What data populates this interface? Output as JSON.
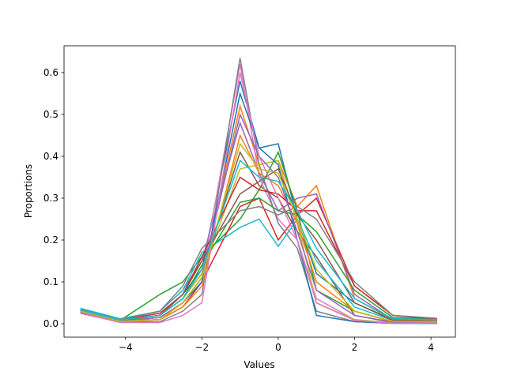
{
  "chart_data": {
    "type": "line",
    "xlabel": "Values",
    "ylabel": "Proportions",
    "x": [
      -5.18,
      -4.14,
      -3.1,
      -2.5,
      -2.0,
      -1.0,
      -0.5,
      0.0,
      0.5,
      1.0,
      2.0,
      3.0,
      4.16
    ],
    "xlim": [
      -5.61,
      4.64
    ],
    "xticks": [
      {
        "value": -4,
        "label": "−4"
      },
      {
        "value": -2,
        "label": "−2"
      },
      0,
      2,
      4
    ],
    "ylim": [
      -0.032,
      0.664
    ],
    "yticks": [
      {
        "value": 0,
        "label": "0.0"
      },
      0.1,
      0.2,
      0.3,
      0.4,
      0.5,
      0.6
    ],
    "series": [
      {
        "color": "#1f77b4",
        "values": [
          0.033,
          0.008,
          0.02,
          0.07,
          0.13,
          0.58,
          0.42,
          0.43,
          0.25,
          0.12,
          0.05,
          0.01,
          0.008
        ]
      },
      {
        "color": "#ff7f0e",
        "values": [
          0.028,
          0.005,
          0.015,
          0.05,
          0.11,
          0.52,
          0.38,
          0.39,
          0.28,
          0.33,
          0.06,
          0.01,
          0.005
        ]
      },
      {
        "color": "#2ca02c",
        "values": [
          0.03,
          0.008,
          0.07,
          0.1,
          0.16,
          0.25,
          0.32,
          0.41,
          0.27,
          0.08,
          0.03,
          0.005,
          0.005
        ]
      },
      {
        "color": "#d62728",
        "values": [
          0.025,
          0.004,
          0.01,
          0.04,
          0.1,
          0.28,
          0.3,
          0.2,
          0.26,
          0.3,
          0.09,
          0.02,
          0.01
        ]
      },
      {
        "color": "#9467bd",
        "values": [
          0.035,
          0.01,
          0.03,
          0.08,
          0.15,
          0.48,
          0.36,
          0.27,
          0.3,
          0.31,
          0.07,
          0.01,
          0.012
        ]
      },
      {
        "color": "#8c564b",
        "values": [
          0.03,
          0.005,
          0.02,
          0.06,
          0.12,
          0.41,
          0.33,
          0.3,
          0.22,
          0.16,
          0.02,
          0.003,
          0.004
        ]
      },
      {
        "color": "#e377c2",
        "values": [
          0.03,
          0.006,
          0.015,
          0.05,
          0.11,
          0.62,
          0.35,
          0.25,
          0.2,
          0.06,
          0.01,
          0.002,
          0.002
        ]
      },
      {
        "color": "#7f7f7f",
        "values": [
          0.028,
          0.004,
          0.005,
          0.03,
          0.07,
          0.635,
          0.38,
          0.24,
          0.18,
          0.03,
          0.005,
          0.001,
          0.001
        ]
      },
      {
        "color": "#bcbd22",
        "values": [
          0.03,
          0.007,
          0.02,
          0.06,
          0.12,
          0.37,
          0.38,
          0.39,
          0.24,
          0.05,
          0.01,
          0.002,
          0.003
        ]
      },
      {
        "color": "#17becf",
        "values": [
          0.037,
          0.012,
          0.03,
          0.08,
          0.17,
          0.23,
          0.25,
          0.185,
          0.25,
          0.15,
          0.04,
          0.008,
          0.01
        ]
      },
      {
        "color": "#1f77b4",
        "values": [
          0.03,
          0.006,
          0.01,
          0.05,
          0.1,
          0.55,
          0.42,
          0.38,
          0.2,
          0.02,
          0.005,
          0.001,
          0.001
        ]
      },
      {
        "color": "#ff7f0e",
        "values": [
          0.027,
          0.004,
          0.01,
          0.04,
          0.09,
          0.45,
          0.36,
          0.33,
          0.24,
          0.1,
          0.03,
          0.005,
          0.006
        ]
      },
      {
        "color": "#2ca02c",
        "values": [
          0.03,
          0.007,
          0.02,
          0.06,
          0.14,
          0.29,
          0.3,
          0.27,
          0.26,
          0.22,
          0.08,
          0.015,
          0.01
        ]
      },
      {
        "color": "#d62728",
        "values": [
          0.032,
          0.009,
          0.025,
          0.07,
          0.16,
          0.35,
          0.32,
          0.31,
          0.27,
          0.27,
          0.09,
          0.02,
          0.012
        ]
      },
      {
        "color": "#9467bd",
        "values": [
          0.029,
          0.005,
          0.015,
          0.05,
          0.11,
          0.5,
          0.4,
          0.35,
          0.22,
          0.08,
          0.02,
          0.004,
          0.005
        ]
      },
      {
        "color": "#8c564b",
        "values": [
          0.031,
          0.008,
          0.02,
          0.07,
          0.15,
          0.31,
          0.34,
          0.37,
          0.26,
          0.2,
          0.05,
          0.008,
          0.008
        ]
      },
      {
        "color": "#e377c2",
        "values": [
          0.026,
          0.003,
          0.003,
          0.02,
          0.05,
          0.6,
          0.4,
          0.3,
          0.2,
          0.05,
          0.008,
          0.001,
          0.002
        ]
      },
      {
        "color": "#7f7f7f",
        "values": [
          0.034,
          0.01,
          0.03,
          0.09,
          0.18,
          0.27,
          0.28,
          0.26,
          0.28,
          0.25,
          0.1,
          0.02,
          0.013
        ]
      },
      {
        "color": "#bcbd22",
        "values": [
          0.03,
          0.006,
          0.01,
          0.05,
          0.11,
          0.43,
          0.37,
          0.36,
          0.25,
          0.13,
          0.03,
          0.006,
          0.006
        ]
      },
      {
        "color": "#17becf",
        "values": [
          0.033,
          0.009,
          0.02,
          0.06,
          0.13,
          0.39,
          0.35,
          0.34,
          0.27,
          0.18,
          0.06,
          0.012,
          0.01
        ]
      }
    ]
  }
}
